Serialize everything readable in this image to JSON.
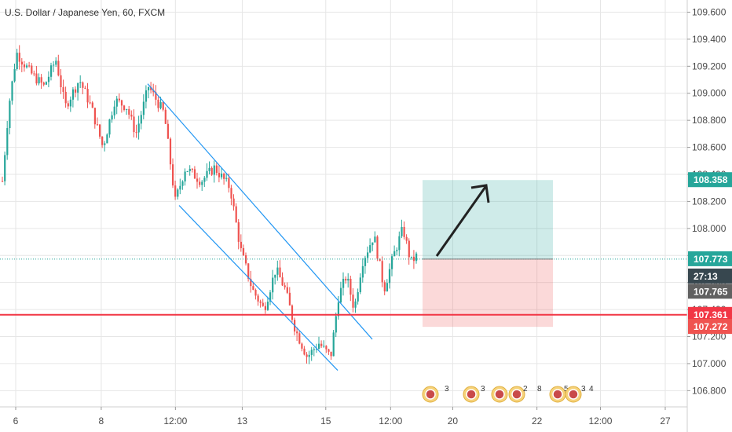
{
  "chart_data": {
    "type": "candlestick",
    "title": "U.S. Dollar / Japanese Yen, 60, FXCM",
    "y_ticks": [
      "109.600",
      "109.400",
      "109.200",
      "109.000",
      "108.800",
      "108.600",
      "108.400",
      "108.200",
      "108.000",
      "107.800",
      "107.600",
      "107.400",
      "107.200",
      "107.000",
      "106.800"
    ],
    "ylim": [
      106.68,
      109.69
    ],
    "x_ticks": [
      {
        "label": "6",
        "pos": 0.0
      },
      {
        "label": "8",
        "pos": 0.128
      },
      {
        "label": "12:00",
        "pos": 0.239
      },
      {
        "label": "13",
        "pos": 0.339
      },
      {
        "label": "15",
        "pos": 0.464
      },
      {
        "label": "12:00",
        "pos": 0.561
      },
      {
        "label": "20",
        "pos": 0.654
      },
      {
        "label": "22",
        "pos": 0.78
      },
      {
        "label": "12:00",
        "pos": 0.875
      },
      {
        "label": "27",
        "pos": 0.972
      }
    ],
    "price_tags": [
      {
        "name": "take-profit",
        "value": "108.358",
        "color": "#26a69a"
      },
      {
        "name": "current-price",
        "value": "107.773",
        "color": "#26a69a"
      },
      {
        "name": "countdown",
        "value": "27:13",
        "color": "#37474f"
      },
      {
        "name": "bid",
        "value": "107.765",
        "color": "#616161"
      },
      {
        "name": "support-line",
        "value": "107.361",
        "color": "#f23645"
      },
      {
        "name": "stop-loss",
        "value": "107.272",
        "color": "#ef5350"
      }
    ],
    "support_level": 107.361,
    "current_price": 107.773,
    "position": {
      "entry": 107.773,
      "target": 108.358,
      "stop": 107.272
    },
    "event_labels": [
      "3",
      "3",
      "2",
      "8",
      "5",
      "3",
      "4"
    ],
    "colors": {
      "up": "#26a69a",
      "down": "#ef5350",
      "channel": "#2196f3",
      "grid": "#e6e6e6"
    },
    "grid": true
  }
}
